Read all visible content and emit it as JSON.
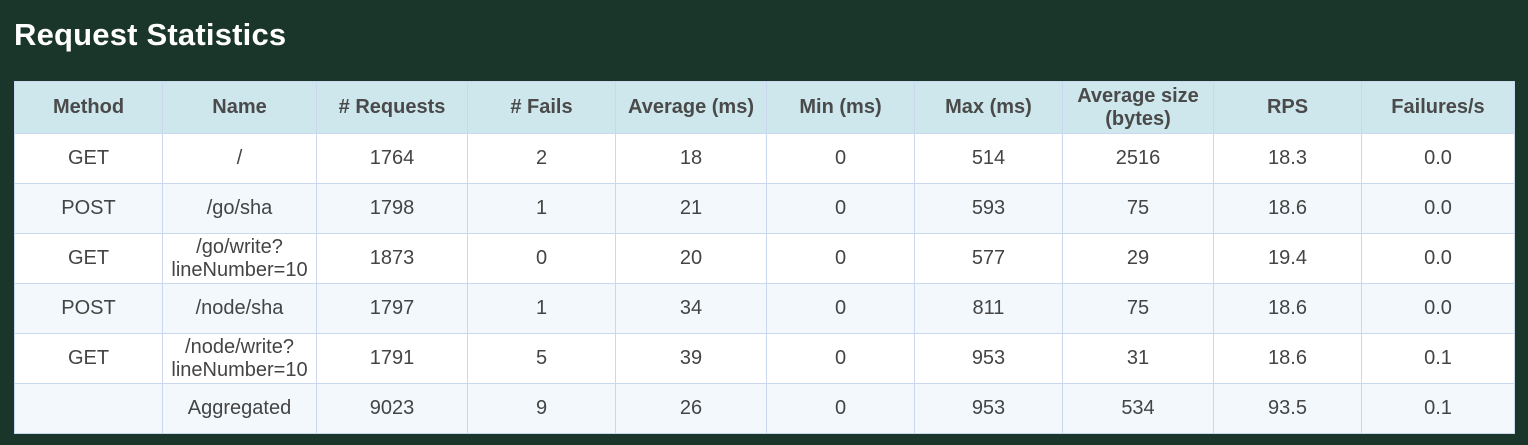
{
  "page": {
    "title": "Request Statistics"
  },
  "table": {
    "headers": [
      "Method",
      "Name",
      "# Requests",
      "# Fails",
      "Average (ms)",
      "Min (ms)",
      "Max (ms)",
      "Average size\n(bytes)",
      "RPS",
      "Failures/s"
    ],
    "rows": [
      {
        "method": "GET",
        "name": "/",
        "requests": "1764",
        "fails": "2",
        "avg": "18",
        "min": "0",
        "max": "514",
        "avg_size": "2516",
        "rps": "18.3",
        "failures_s": "0.0"
      },
      {
        "method": "POST",
        "name": "/go/sha",
        "requests": "1798",
        "fails": "1",
        "avg": "21",
        "min": "0",
        "max": "593",
        "avg_size": "75",
        "rps": "18.6",
        "failures_s": "0.0"
      },
      {
        "method": "GET",
        "name": "/go/write?\nlineNumber=10",
        "requests": "1873",
        "fails": "0",
        "avg": "20",
        "min": "0",
        "max": "577",
        "avg_size": "29",
        "rps": "19.4",
        "failures_s": "0.0"
      },
      {
        "method": "POST",
        "name": "/node/sha",
        "requests": "1797",
        "fails": "1",
        "avg": "34",
        "min": "0",
        "max": "811",
        "avg_size": "75",
        "rps": "18.6",
        "failures_s": "0.0"
      },
      {
        "method": "GET",
        "name": "/node/write?\nlineNumber=10",
        "requests": "1791",
        "fails": "5",
        "avg": "39",
        "min": "0",
        "max": "953",
        "avg_size": "31",
        "rps": "18.6",
        "failures_s": "0.1"
      }
    ],
    "aggregate": {
      "method": "",
      "name": "Aggregated",
      "requests": "9023",
      "fails": "9",
      "avg": "26",
      "min": "0",
      "max": "953",
      "avg_size": "534",
      "rps": "93.5",
      "failures_s": "0.1"
    }
  }
}
